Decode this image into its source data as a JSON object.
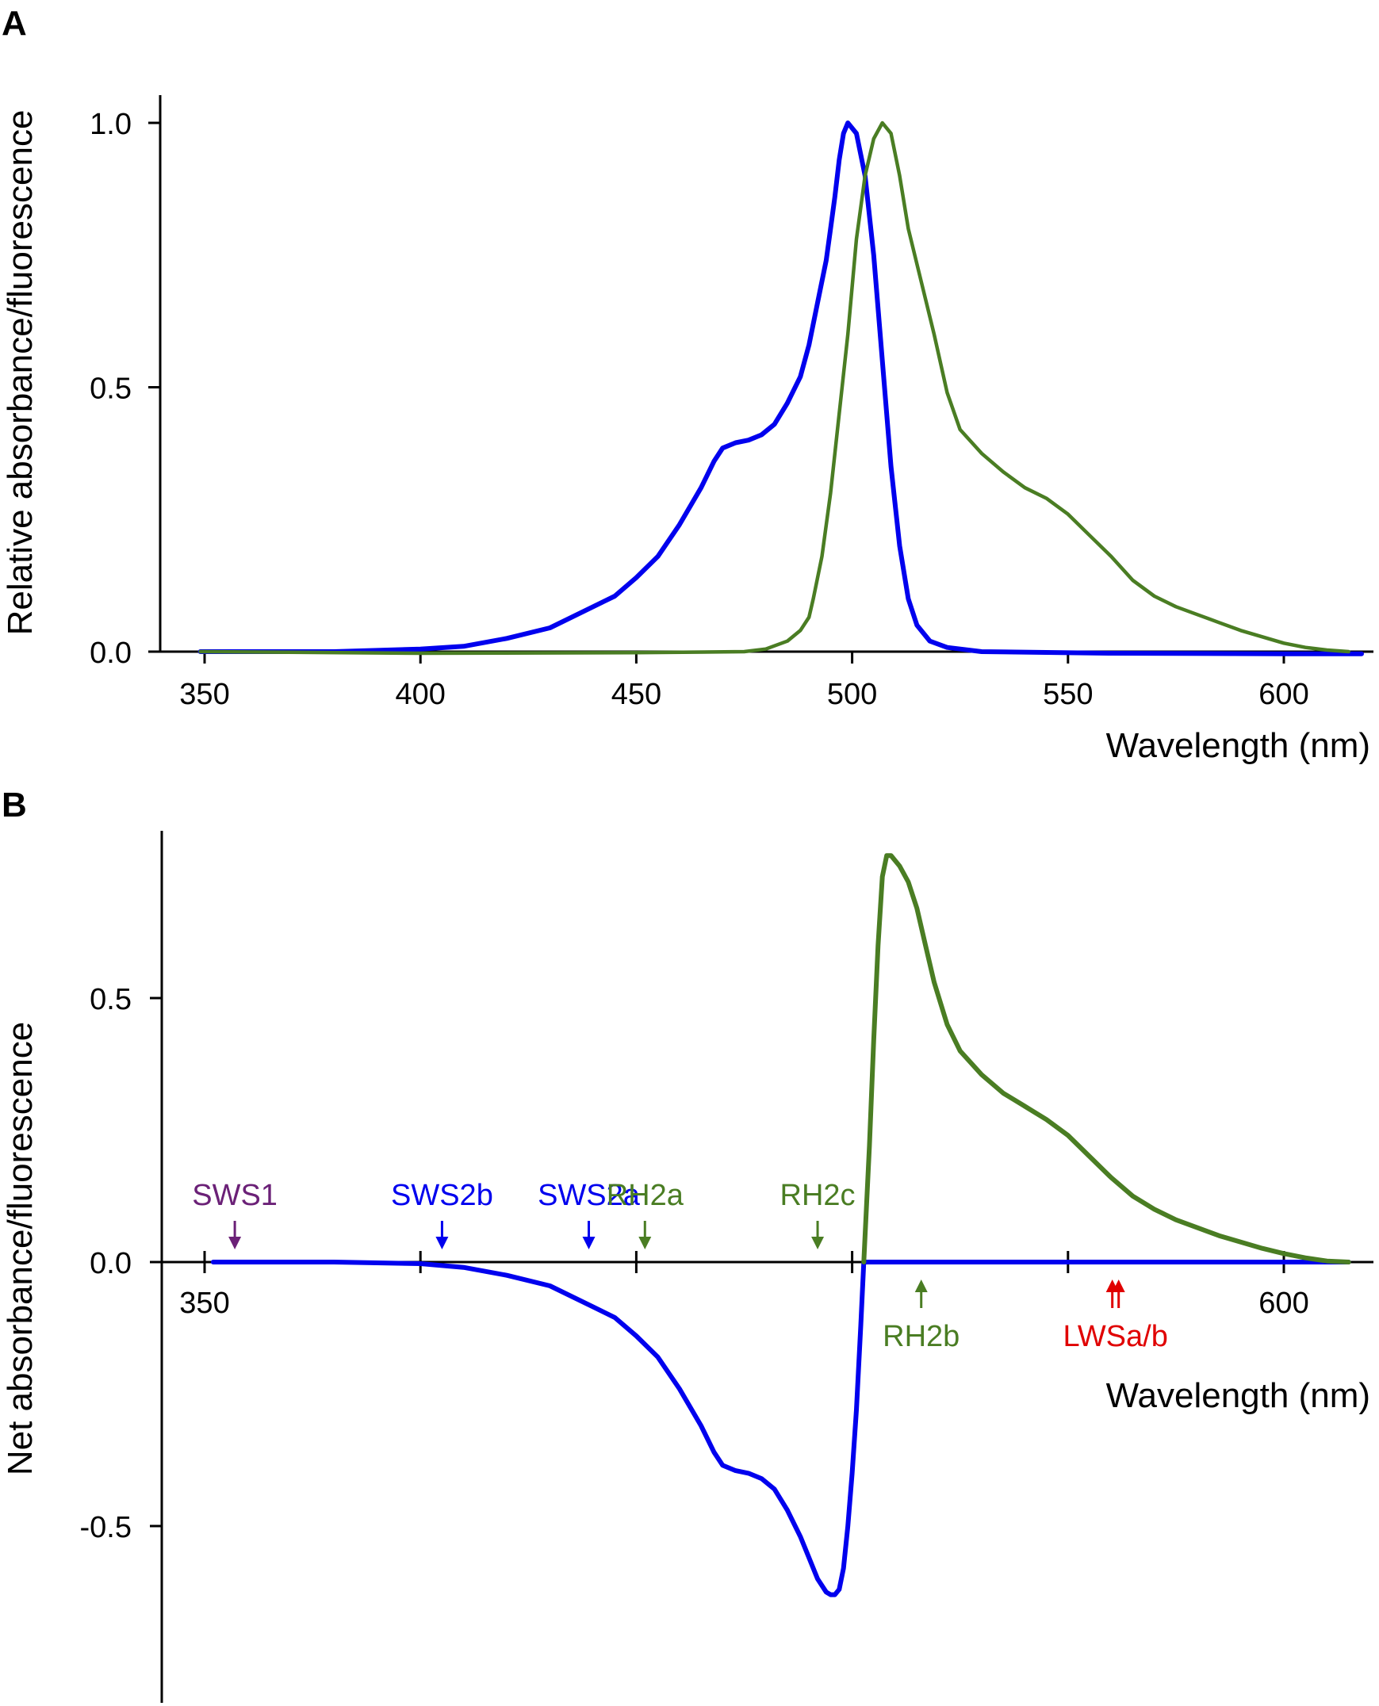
{
  "chart_data": [
    {
      "panel": "A",
      "type": "line",
      "ylabel": "Relative absorbance/fluorescence",
      "xlabel": "Wavelength (nm)",
      "xlim": [
        340,
        620
      ],
      "ylim": [
        0,
        1.0
      ],
      "x_ticks": [
        350,
        400,
        450,
        500,
        550,
        600
      ],
      "y_ticks": [
        0.0,
        0.5,
        1.0
      ],
      "y_tick_labels": [
        "0.0",
        "0.5",
        "1.0"
      ],
      "series": [
        {
          "name": "absorbance",
          "color": "#0000ee",
          "points": [
            [
              349,
              0.0
            ],
            [
              380,
              0.0
            ],
            [
              400,
              0.005
            ],
            [
              410,
              0.01
            ],
            [
              420,
              0.025
            ],
            [
              430,
              0.045
            ],
            [
              440,
              0.085
            ],
            [
              445,
              0.105
            ],
            [
              450,
              0.14
            ],
            [
              455,
              0.18
            ],
            [
              460,
              0.24
            ],
            [
              465,
              0.31
            ],
            [
              468,
              0.36
            ],
            [
              470,
              0.385
            ],
            [
              473,
              0.395
            ],
            [
              476,
              0.4
            ],
            [
              479,
              0.41
            ],
            [
              482,
              0.43
            ],
            [
              485,
              0.47
            ],
            [
              488,
              0.52
            ],
            [
              490,
              0.58
            ],
            [
              492,
              0.66
            ],
            [
              494,
              0.74
            ],
            [
              495,
              0.8
            ],
            [
              496,
              0.86
            ],
            [
              497,
              0.93
            ],
            [
              498,
              0.98
            ],
            [
              499,
              1.0
            ],
            [
              501,
              0.98
            ],
            [
              503,
              0.9
            ],
            [
              505,
              0.75
            ],
            [
              507,
              0.55
            ],
            [
              509,
              0.35
            ],
            [
              511,
              0.2
            ],
            [
              513,
              0.1
            ],
            [
              515,
              0.05
            ],
            [
              518,
              0.02
            ],
            [
              522,
              0.008
            ],
            [
              530,
              0.0
            ],
            [
              560,
              -0.003
            ],
            [
              600,
              -0.004
            ],
            [
              618,
              -0.004
            ]
          ]
        },
        {
          "name": "fluorescence",
          "color": "#4a7d23",
          "points": [
            [
              349,
              0.0
            ],
            [
              400,
              -0.003
            ],
            [
              450,
              -0.002
            ],
            [
              475,
              0.0
            ],
            [
              480,
              0.005
            ],
            [
              485,
              0.02
            ],
            [
              488,
              0.04
            ],
            [
              490,
              0.065
            ],
            [
              491,
              0.1
            ],
            [
              493,
              0.18
            ],
            [
              495,
              0.3
            ],
            [
              497,
              0.45
            ],
            [
              499,
              0.6
            ],
            [
              501,
              0.78
            ],
            [
              503,
              0.9
            ],
            [
              505,
              0.97
            ],
            [
              507,
              1.0
            ],
            [
              509,
              0.98
            ],
            [
              511,
              0.9
            ],
            [
              513,
              0.8
            ],
            [
              516,
              0.7
            ],
            [
              519,
              0.6
            ],
            [
              522,
              0.49
            ],
            [
              525,
              0.42
            ],
            [
              530,
              0.375
            ],
            [
              535,
              0.34
            ],
            [
              540,
              0.31
            ],
            [
              545,
              0.29
            ],
            [
              550,
              0.26
            ],
            [
              555,
              0.22
            ],
            [
              560,
              0.18
            ],
            [
              565,
              0.135
            ],
            [
              570,
              0.105
            ],
            [
              575,
              0.085
            ],
            [
              580,
              0.07
            ],
            [
              585,
              0.055
            ],
            [
              590,
              0.04
            ],
            [
              595,
              0.028
            ],
            [
              600,
              0.016
            ],
            [
              605,
              0.008
            ],
            [
              610,
              0.003
            ],
            [
              615,
              0.0
            ]
          ]
        }
      ]
    },
    {
      "panel": "B",
      "type": "line",
      "ylabel": "Net absorbance/fluorescence",
      "xlabel": "Wavelength (nm)",
      "xlim": [
        340,
        620
      ],
      "ylim": [
        -0.82,
        0.82
      ],
      "x_ticks": [
        350,
        400,
        450,
        500,
        550,
        600
      ],
      "x_tick_labels": [
        "350",
        "",
        "",
        "",
        "",
        "600"
      ],
      "y_ticks": [
        -0.5,
        0.0,
        0.5
      ],
      "y_tick_labels": [
        "-0.5",
        "0.0",
        "0.5"
      ],
      "series": [
        {
          "name": "net",
          "color_negative": "#0000ee",
          "color_positive": "#4a7d23",
          "points": [
            [
              352,
              0.0
            ],
            [
              380,
              0.0
            ],
            [
              400,
              -0.003
            ],
            [
              410,
              -0.01
            ],
            [
              420,
              -0.025
            ],
            [
              430,
              -0.045
            ],
            [
              440,
              -0.085
            ],
            [
              445,
              -0.105
            ],
            [
              450,
              -0.14
            ],
            [
              455,
              -0.18
            ],
            [
              460,
              -0.24
            ],
            [
              465,
              -0.31
            ],
            [
              468,
              -0.36
            ],
            [
              470,
              -0.385
            ],
            [
              473,
              -0.395
            ],
            [
              476,
              -0.4
            ],
            [
              479,
              -0.41
            ],
            [
              482,
              -0.43
            ],
            [
              485,
              -0.47
            ],
            [
              488,
              -0.52
            ],
            [
              490,
              -0.56
            ],
            [
              492,
              -0.6
            ],
            [
              494,
              -0.625
            ],
            [
              495,
              -0.63
            ],
            [
              496,
              -0.63
            ],
            [
              497,
              -0.62
            ],
            [
              498,
              -0.58
            ],
            [
              499,
              -0.5
            ],
            [
              500,
              -0.4
            ],
            [
              501,
              -0.28
            ],
            [
              502,
              -0.12
            ],
            [
              503,
              0.05
            ],
            [
              504,
              0.22
            ],
            [
              505,
              0.42
            ],
            [
              506,
              0.6
            ],
            [
              507,
              0.73
            ],
            [
              508,
              0.77
            ],
            [
              509,
              0.77
            ],
            [
              511,
              0.75
            ],
            [
              513,
              0.72
            ],
            [
              515,
              0.67
            ],
            [
              517,
              0.6
            ],
            [
              519,
              0.53
            ],
            [
              522,
              0.45
            ],
            [
              525,
              0.4
            ],
            [
              530,
              0.355
            ],
            [
              535,
              0.32
            ],
            [
              540,
              0.295
            ],
            [
              545,
              0.27
            ],
            [
              550,
              0.24
            ],
            [
              555,
              0.2
            ],
            [
              560,
              0.16
            ],
            [
              565,
              0.125
            ],
            [
              570,
              0.1
            ],
            [
              575,
              0.08
            ],
            [
              580,
              0.065
            ],
            [
              585,
              0.05
            ],
            [
              590,
              0.038
            ],
            [
              595,
              0.026
            ],
            [
              600,
              0.016
            ],
            [
              605,
              0.008
            ],
            [
              610,
              0.002
            ],
            [
              615,
              0.0
            ]
          ]
        }
      ],
      "annotations": [
        {
          "label": "SWS1",
          "x": 357,
          "color": "#6b2177",
          "side": "above"
        },
        {
          "label": "SWS2b",
          "x": 405,
          "color": "#0000ee",
          "side": "above"
        },
        {
          "label": "SWS2a",
          "x": 439,
          "color": "#0000ee",
          "side": "above"
        },
        {
          "label": "RH2a",
          "x": 452,
          "color": "#4a7d23",
          "side": "above"
        },
        {
          "label": "RH2c",
          "x": 492,
          "color": "#4a7d23",
          "side": "above"
        },
        {
          "label": "RH2b",
          "x": 516,
          "color": "#4a7d23",
          "side": "below"
        },
        {
          "label": "LWSa/b",
          "x": 561,
          "color": "#e00000",
          "side": "below",
          "double": true
        }
      ]
    }
  ],
  "panel_labels": [
    "A",
    "B"
  ],
  "colors": {
    "axis": "#000000",
    "blue": "#0000ee",
    "green": "#4a7d23",
    "purple": "#6b2177",
    "red": "#e00000"
  }
}
